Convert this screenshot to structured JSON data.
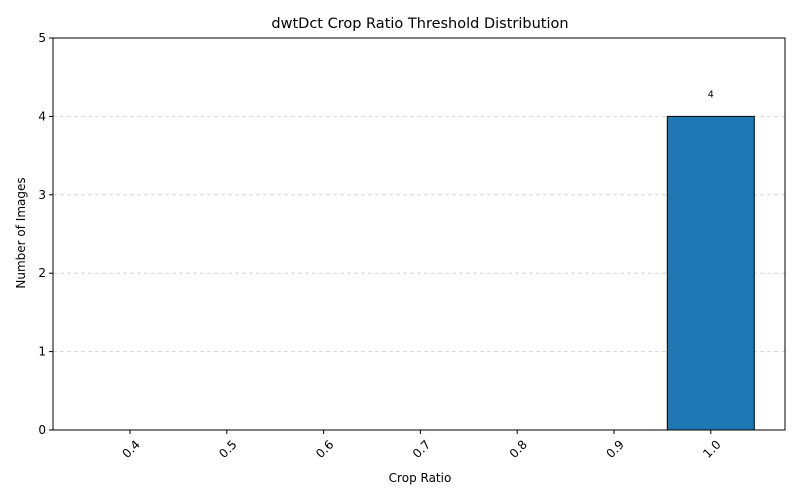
{
  "chart_data": {
    "type": "bar",
    "title": "dwtDct Crop Ratio Threshold Distribution",
    "xlabel": "Crop Ratio",
    "ylabel": "Number of Images",
    "categories": [
      "0.4",
      "0.5",
      "0.6",
      "0.7",
      "0.8",
      "0.9",
      "1.0"
    ],
    "values": [
      0,
      0,
      0,
      0,
      0,
      0,
      4
    ],
    "data_labels": [
      "",
      "",
      "",
      "",
      "",
      "",
      "4"
    ],
    "ylim": [
      0,
      5
    ],
    "yticks": [
      "0",
      "1",
      "2",
      "3",
      "4",
      "5"
    ],
    "grid": "y-dashed",
    "bar_color": "#1f77b4",
    "bar_edge_color": "#000000",
    "grid_color": "#cccccc"
  }
}
